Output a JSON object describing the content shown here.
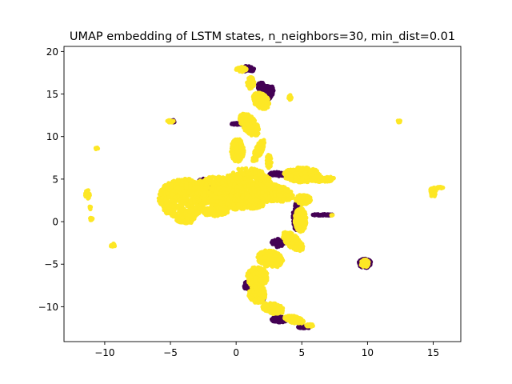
{
  "chart_data": {
    "type": "scatter",
    "title": "UMAP embedding of LSTM states, n_neighbors=30, min_dist=0.01",
    "xlabel": "",
    "ylabel": "",
    "xlim": [
      -13.1,
      17.1
    ],
    "ylim": [
      -14.1,
      20.6
    ],
    "x_ticks": [
      -10,
      -5,
      0,
      5,
      10,
      15
    ],
    "y_ticks": [
      -10,
      -5,
      0,
      5,
      10,
      15,
      20
    ],
    "x_tick_labels": [
      "−10",
      "−5",
      "0",
      "5",
      "10",
      "15"
    ],
    "y_tick_labels": [
      "−10",
      "−5",
      "0",
      "5",
      "10",
      "15",
      "20"
    ],
    "grid": false,
    "legend": "none",
    "colors": {
      "class_a": "#440154",
      "class_b": "#fde725"
    },
    "series": [
      {
        "color": "#440154",
        "blobs": [
          {
            "cx": 2.2,
            "cy": 14.9,
            "rx": 0.55,
            "ry": 1.2,
            "n": 260,
            "rot": -20
          },
          {
            "cx": 1.9,
            "cy": 15.9,
            "rx": 0.25,
            "ry": 0.5,
            "n": 80
          },
          {
            "cx": 0.5,
            "cy": 11.5,
            "rx": 0.9,
            "ry": 0.12,
            "n": 90
          },
          {
            "cx": 0.8,
            "cy": -7.5,
            "rx": 0.22,
            "ry": 0.45,
            "n": 70
          },
          {
            "cx": 3.3,
            "cy": -11.5,
            "rx": 0.6,
            "ry": 0.35,
            "n": 110
          },
          {
            "cx": 1.8,
            "cy": -8.8,
            "rx": 0.4,
            "ry": 0.6,
            "n": 80
          },
          {
            "cx": 4.6,
            "cy": 0.6,
            "rx": 0.3,
            "ry": 1.6,
            "n": 110
          },
          {
            "cx": 6.6,
            "cy": 0.8,
            "rx": 0.8,
            "ry": 0.1,
            "n": 60
          },
          {
            "cx": 9.8,
            "cy": -4.9,
            "rx": 0.48,
            "ry": 0.55,
            "n": 130
          },
          {
            "cx": 3.2,
            "cy": -2.5,
            "rx": 0.5,
            "ry": 0.5,
            "n": 60
          },
          {
            "cx": 5.2,
            "cy": -12.4,
            "rx": 0.5,
            "ry": 0.15,
            "n": 50
          },
          {
            "cx": 3.2,
            "cy": 5.6,
            "rx": 0.7,
            "ry": 0.25,
            "n": 40
          },
          {
            "cx": -4.8,
            "cy": 11.8,
            "rx": 0.15,
            "ry": 0.15,
            "n": 20
          },
          {
            "cx": -2.3,
            "cy": 4.3,
            "rx": 0.8,
            "ry": 0.8,
            "n": 50
          },
          {
            "cx": 0.8,
            "cy": 17.9,
            "rx": 0.6,
            "ry": 0.4,
            "n": 40
          }
        ]
      },
      {
        "color": "#fde725",
        "blobs": [
          {
            "cx": -4.0,
            "cy": 2.7,
            "rx": 1.9,
            "ry": 2.4,
            "n": 600
          },
          {
            "cx": -1.5,
            "cy": 3.7,
            "rx": 1.8,
            "ry": 1.6,
            "n": 520
          },
          {
            "cx": 0.8,
            "cy": 4.4,
            "rx": 1.9,
            "ry": 1.9,
            "n": 520
          },
          {
            "cx": 0.2,
            "cy": 2.3,
            "rx": 2.2,
            "ry": 0.9,
            "n": 400
          },
          {
            "cx": 2.8,
            "cy": 3.4,
            "rx": 1.6,
            "ry": 1.0,
            "n": 360,
            "rot": -20
          },
          {
            "cx": 5.0,
            "cy": 5.5,
            "rx": 1.4,
            "ry": 0.9,
            "n": 320
          },
          {
            "cx": 6.6,
            "cy": 5.0,
            "rx": 0.9,
            "ry": 0.35,
            "n": 100
          },
          {
            "cx": 5.1,
            "cy": 2.6,
            "rx": 0.6,
            "ry": 0.6,
            "n": 140
          },
          {
            "cx": 4.9,
            "cy": 0.2,
            "rx": 0.45,
            "ry": 1.4,
            "n": 220
          },
          {
            "cx": 4.3,
            "cy": -2.3,
            "rx": 0.55,
            "ry": 1.3,
            "n": 220,
            "rot": 30
          },
          {
            "cx": 2.6,
            "cy": -4.4,
            "rx": 0.9,
            "ry": 1.1,
            "n": 240,
            "rot": 35
          },
          {
            "cx": 1.6,
            "cy": -6.5,
            "rx": 0.8,
            "ry": 1.2,
            "n": 240
          },
          {
            "cx": 1.6,
            "cy": -8.5,
            "rx": 0.65,
            "ry": 1.1,
            "n": 220
          },
          {
            "cx": 2.8,
            "cy": -10.2,
            "rx": 0.9,
            "ry": 0.6,
            "n": 200,
            "rot": -30
          },
          {
            "cx": 4.4,
            "cy": -11.5,
            "rx": 0.8,
            "ry": 0.4,
            "n": 160,
            "rot": -25
          },
          {
            "cx": 5.6,
            "cy": -12.2,
            "rx": 0.3,
            "ry": 0.15,
            "n": 40
          },
          {
            "cx": 0.1,
            "cy": 8.4,
            "rx": 0.5,
            "ry": 1.4,
            "n": 220
          },
          {
            "cx": 1.0,
            "cy": 11.4,
            "rx": 0.6,
            "ry": 1.4,
            "n": 220,
            "rot": 20
          },
          {
            "cx": 1.9,
            "cy": 14.2,
            "rx": 0.6,
            "ry": 1.0,
            "n": 200,
            "rot": 20
          },
          {
            "cx": 1.1,
            "cy": 16.3,
            "rx": 0.3,
            "ry": 0.7,
            "n": 90
          },
          {
            "cx": 0.4,
            "cy": 17.9,
            "rx": 0.4,
            "ry": 0.3,
            "n": 60
          },
          {
            "cx": 1.7,
            "cy": 8.3,
            "rx": 0.3,
            "ry": 1.4,
            "n": 120,
            "rot": -15
          },
          {
            "cx": 2.5,
            "cy": 7.1,
            "rx": 0.2,
            "ry": 0.8,
            "n": 60
          },
          {
            "cx": -3.8,
            "cy": 0.3,
            "rx": 0.8,
            "ry": 0.5,
            "n": 100
          },
          {
            "cx": -1.6,
            "cy": 1.2,
            "rx": 1.0,
            "ry": 0.6,
            "n": 140
          },
          {
            "cx": 4.1,
            "cy": 14.6,
            "rx": 0.12,
            "ry": 0.3,
            "n": 20
          },
          {
            "cx": -5.0,
            "cy": 11.8,
            "rx": 0.25,
            "ry": 0.15,
            "n": 25
          },
          {
            "cx": -10.6,
            "cy": 8.6,
            "rx": 0.1,
            "ry": 0.12,
            "n": 10
          },
          {
            "cx": -11.3,
            "cy": 3.2,
            "rx": 0.2,
            "ry": 0.5,
            "n": 25
          },
          {
            "cx": -11.1,
            "cy": 1.6,
            "rx": 0.12,
            "ry": 0.2,
            "n": 10
          },
          {
            "cx": -11.0,
            "cy": 0.3,
            "rx": 0.12,
            "ry": 0.2,
            "n": 10
          },
          {
            "cx": -9.4,
            "cy": -2.8,
            "rx": 0.2,
            "ry": 0.25,
            "n": 15
          },
          {
            "cx": 9.8,
            "cy": -4.9,
            "rx": 0.35,
            "ry": 0.45,
            "n": 60
          },
          {
            "cx": 12.4,
            "cy": 11.8,
            "rx": 0.12,
            "ry": 0.15,
            "n": 10
          },
          {
            "cx": 15.0,
            "cy": 3.5,
            "rx": 0.25,
            "ry": 0.6,
            "n": 40
          },
          {
            "cx": 15.5,
            "cy": 4.0,
            "rx": 0.25,
            "ry": 0.12,
            "n": 15
          },
          {
            "cx": 7.3,
            "cy": 0.8,
            "rx": 0.1,
            "ry": 0.1,
            "n": 6
          }
        ]
      }
    ]
  }
}
